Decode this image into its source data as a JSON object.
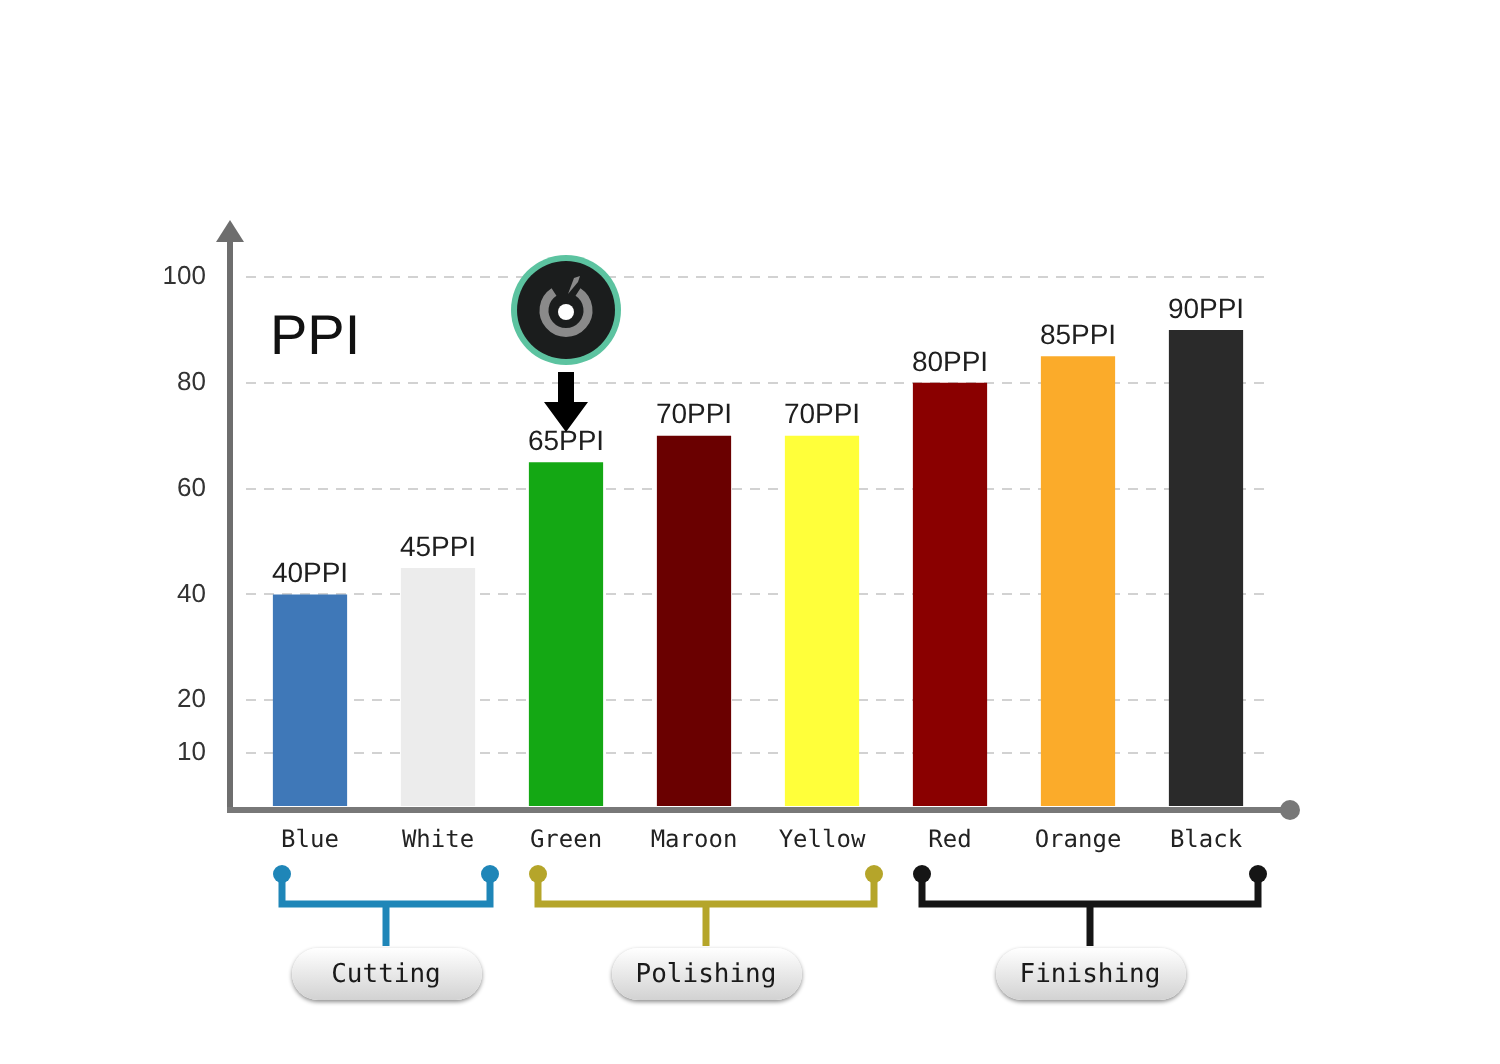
{
  "chart_data": {
    "type": "bar",
    "ylabel": "PPI",
    "categories": [
      "Blue",
      "White",
      "Green",
      "Maroon",
      "Yellow",
      "Red",
      "Orange",
      "Black"
    ],
    "values": [
      40,
      45,
      65,
      70,
      70,
      80,
      85,
      90
    ],
    "colors": [
      "#3f78b8",
      "#ececec",
      "#14a814",
      "#6a0000",
      "#ffff3a",
      "#8a0000",
      "#fbab2a",
      "#2a2a2a"
    ],
    "value_labels": [
      "40PPI",
      "45PPI",
      "65PPI",
      "70PPI",
      "70PPI",
      "80PPI",
      "85PPI",
      "90PPI"
    ],
    "ylim": [
      0,
      107
    ],
    "yticks": [
      10,
      20,
      40,
      60,
      80,
      100
    ],
    "grid": "y",
    "annotations": [
      "Cutting",
      "Polishing",
      "Finishing"
    ]
  }
}
